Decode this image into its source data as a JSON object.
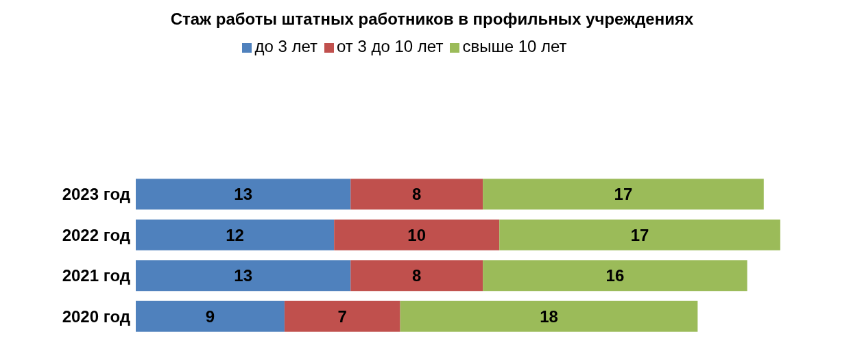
{
  "chart_data": {
    "type": "bar",
    "title": "Стаж работы штатных работников в профильных учреждениях",
    "orientation": "horizontal",
    "stacked": true,
    "data_labels": true,
    "legend": "top",
    "grid": false,
    "categories": [
      "2023 год",
      "2022 год",
      "2021 год",
      "2020 год"
    ],
    "series": [
      {
        "name": "до  3 лет",
        "color": "#4f81bd",
        "values": [
          13,
          12,
          13,
          9
        ]
      },
      {
        "name": "от 3 до 10 лет",
        "color": "#c0504d",
        "values": [
          8,
          10,
          8,
          7
        ]
      },
      {
        "name": "свыше 10 лет",
        "color": "#9bbb59",
        "values": [
          17,
          17,
          16,
          18
        ]
      }
    ]
  }
}
